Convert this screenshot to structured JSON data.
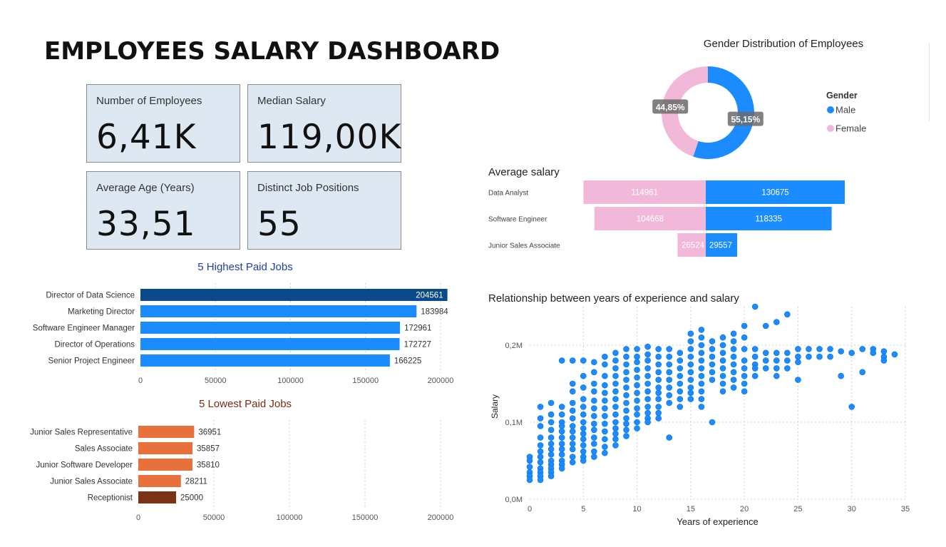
{
  "dashboard": {
    "title": "EMPLOYEES SALARY DASHBOARD"
  },
  "kpis": [
    {
      "label": "Number of Employees",
      "value": "6,41K"
    },
    {
      "label": "Median Salary",
      "value": "119,00K"
    },
    {
      "label": "Average Age (Years)",
      "value": "33,51"
    },
    {
      "label": "Distinct Job Positions",
      "value": "55"
    }
  ],
  "chart_data": [
    {
      "id": "highest_paid",
      "type": "bar",
      "orientation": "horizontal",
      "title": "5 Highest Paid Jobs",
      "categories": [
        "Director of Data Science",
        "Marketing Director",
        "Software Engineer Manager",
        "Director of Operations",
        "Senior Project Engineer"
      ],
      "values": [
        204561,
        183984,
        172961,
        172727,
        166225
      ],
      "xlim": [
        0,
        200000
      ],
      "xticks": [
        "0",
        "50000",
        "100000",
        "150000",
        "200000"
      ],
      "colors": [
        "#0a4a8a",
        "#1a8cff",
        "#1a8cff",
        "#1a8cff",
        "#1a8cff"
      ],
      "grid": true
    },
    {
      "id": "lowest_paid",
      "type": "bar",
      "orientation": "horizontal",
      "title": "5 Lowest Paid Jobs",
      "categories": [
        "Junior Sales Representative",
        "Sales Associate",
        "Junior Software Developer",
        "Junior Sales Associate",
        "Receptionist"
      ],
      "values": [
        36951,
        35857,
        35810,
        28211,
        25000
      ],
      "xlim": [
        0,
        200000
      ],
      "xticks": [
        "0",
        "50000",
        "100000",
        "150000",
        "200000"
      ],
      "colors": [
        "#e8703a",
        "#e8703a",
        "#e8703a",
        "#e8703a",
        "#7a3414"
      ],
      "grid": true
    },
    {
      "id": "gender_distribution",
      "type": "pie",
      "donut": true,
      "title": "Gender Distribution of Employees",
      "legend_title": "Gender",
      "legend_position": "right",
      "slices": [
        {
          "name": "Male",
          "value": 55.15,
          "label": "55,15%",
          "color": "#1a8cff"
        },
        {
          "name": "Female",
          "value": 44.85,
          "label": "44,85%",
          "color": "#f2b8da"
        }
      ]
    },
    {
      "id": "average_salary",
      "type": "bar",
      "orientation": "diverging",
      "title": "Average salary",
      "categories": [
        "Data Analyst",
        "Software Engineer",
        "Junior Sales Associate"
      ],
      "series": [
        {
          "name": "Female",
          "values": [
            114961,
            104668,
            26524
          ],
          "color": "#f2b8da"
        },
        {
          "name": "Male",
          "values": [
            130675,
            118335,
            29557
          ],
          "color": "#1a8cff"
        }
      ]
    },
    {
      "id": "experience_salary",
      "type": "scatter",
      "title": "Relationship between years of experience and salary",
      "xlabel": "Years of experience",
      "ylabel": "Salary",
      "xlim": [
        0,
        35
      ],
      "ylim": [
        0,
        250000
      ],
      "xticks": [
        "0",
        "5",
        "10",
        "15",
        "20",
        "25",
        "30",
        "35"
      ],
      "yticks": [
        {
          "value": 0,
          "label": "0,0M"
        },
        {
          "value": 100000,
          "label": "0,1M"
        },
        {
          "value": 200000,
          "label": "0,2M"
        }
      ],
      "color": "#1a8cff",
      "points": [
        [
          0,
          55000
        ],
        [
          0,
          50000
        ],
        [
          0,
          42000
        ],
        [
          0,
          35000
        ],
        [
          0,
          30000
        ],
        [
          0,
          25000
        ],
        [
          1,
          120000
        ],
        [
          1,
          105000
        ],
        [
          1,
          95000
        ],
        [
          1,
          80000
        ],
        [
          1,
          70000
        ],
        [
          1,
          62000
        ],
        [
          1,
          55000
        ],
        [
          1,
          48000
        ],
        [
          1,
          40000
        ],
        [
          1,
          35000
        ],
        [
          1,
          30000
        ],
        [
          1,
          25000
        ],
        [
          2,
          125000
        ],
        [
          2,
          110000
        ],
        [
          2,
          100000
        ],
        [
          2,
          90000
        ],
        [
          2,
          80000
        ],
        [
          2,
          72000
        ],
        [
          2,
          65000
        ],
        [
          2,
          58000
        ],
        [
          2,
          50000
        ],
        [
          2,
          45000
        ],
        [
          2,
          40000
        ],
        [
          2,
          35000
        ],
        [
          2,
          30000
        ],
        [
          3,
          180000
        ],
        [
          3,
          120000
        ],
        [
          3,
          110000
        ],
        [
          3,
          100000
        ],
        [
          3,
          95000
        ],
        [
          3,
          88000
        ],
        [
          3,
          80000
        ],
        [
          3,
          72000
        ],
        [
          3,
          65000
        ],
        [
          3,
          58000
        ],
        [
          3,
          50000
        ],
        [
          3,
          45000
        ],
        [
          3,
          40000
        ],
        [
          4,
          180000
        ],
        [
          4,
          150000
        ],
        [
          4,
          140000
        ],
        [
          4,
          125000
        ],
        [
          4,
          115000
        ],
        [
          4,
          105000
        ],
        [
          4,
          95000
        ],
        [
          4,
          88000
        ],
        [
          4,
          80000
        ],
        [
          4,
          72000
        ],
        [
          4,
          65000
        ],
        [
          4,
          55000
        ],
        [
          4,
          48000
        ],
        [
          5,
          180000
        ],
        [
          5,
          160000
        ],
        [
          5,
          145000
        ],
        [
          5,
          130000
        ],
        [
          5,
          120000
        ],
        [
          5,
          110000
        ],
        [
          5,
          100000
        ],
        [
          5,
          92000
        ],
        [
          5,
          85000
        ],
        [
          5,
          78000
        ],
        [
          5,
          70000
        ],
        [
          5,
          62000
        ],
        [
          5,
          55000
        ],
        [
          5,
          50000
        ],
        [
          6,
          178000
        ],
        [
          6,
          165000
        ],
        [
          6,
          150000
        ],
        [
          6,
          140000
        ],
        [
          6,
          128000
        ],
        [
          6,
          118000
        ],
        [
          6,
          108000
        ],
        [
          6,
          98000
        ],
        [
          6,
          90000
        ],
        [
          6,
          80000
        ],
        [
          6,
          72000
        ],
        [
          6,
          62000
        ],
        [
          6,
          55000
        ],
        [
          7,
          185000
        ],
        [
          7,
          175000
        ],
        [
          7,
          160000
        ],
        [
          7,
          148000
        ],
        [
          7,
          138000
        ],
        [
          7,
          128000
        ],
        [
          7,
          118000
        ],
        [
          7,
          108000
        ],
        [
          7,
          98000
        ],
        [
          7,
          88000
        ],
        [
          7,
          78000
        ],
        [
          7,
          68000
        ],
        [
          7,
          60000
        ],
        [
          8,
          190000
        ],
        [
          8,
          180000
        ],
        [
          8,
          170000
        ],
        [
          8,
          160000
        ],
        [
          8,
          150000
        ],
        [
          8,
          140000
        ],
        [
          8,
          130000
        ],
        [
          8,
          120000
        ],
        [
          8,
          110000
        ],
        [
          8,
          100000
        ],
        [
          8,
          92000
        ],
        [
          8,
          85000
        ],
        [
          8,
          78000
        ],
        [
          8,
          70000
        ],
        [
          9,
          195000
        ],
        [
          9,
          185000
        ],
        [
          9,
          175000
        ],
        [
          9,
          165000
        ],
        [
          9,
          155000
        ],
        [
          9,
          145000
        ],
        [
          9,
          135000
        ],
        [
          9,
          125000
        ],
        [
          9,
          115000
        ],
        [
          9,
          105000
        ],
        [
          9,
          98000
        ],
        [
          9,
          90000
        ],
        [
          9,
          82000
        ],
        [
          10,
          195000
        ],
        [
          10,
          185000
        ],
        [
          10,
          178000
        ],
        [
          10,
          168000
        ],
        [
          10,
          158000
        ],
        [
          10,
          148000
        ],
        [
          10,
          138000
        ],
        [
          10,
          128000
        ],
        [
          10,
          118000
        ],
        [
          10,
          110000
        ],
        [
          10,
          100000
        ],
        [
          10,
          92000
        ],
        [
          11,
          198000
        ],
        [
          11,
          188000
        ],
        [
          11,
          180000
        ],
        [
          11,
          170000
        ],
        [
          11,
          160000
        ],
        [
          11,
          150000
        ],
        [
          11,
          140000
        ],
        [
          11,
          130000
        ],
        [
          11,
          120000
        ],
        [
          11,
          112000
        ],
        [
          11,
          105000
        ],
        [
          11,
          100000
        ],
        [
          12,
          195000
        ],
        [
          12,
          185000
        ],
        [
          12,
          175000
        ],
        [
          12,
          165000
        ],
        [
          12,
          155000
        ],
        [
          12,
          145000
        ],
        [
          12,
          138000
        ],
        [
          12,
          130000
        ],
        [
          12,
          120000
        ],
        [
          12,
          112000
        ],
        [
          12,
          105000
        ],
        [
          13,
          195000
        ],
        [
          13,
          185000
        ],
        [
          13,
          175000
        ],
        [
          13,
          165000
        ],
        [
          13,
          155000
        ],
        [
          13,
          145000
        ],
        [
          13,
          135000
        ],
        [
          13,
          125000
        ],
        [
          13,
          80000
        ],
        [
          14,
          190000
        ],
        [
          14,
          180000
        ],
        [
          14,
          170000
        ],
        [
          14,
          160000
        ],
        [
          14,
          150000
        ],
        [
          14,
          140000
        ],
        [
          14,
          130000
        ],
        [
          14,
          120000
        ],
        [
          15,
          215000
        ],
        [
          15,
          205000
        ],
        [
          15,
          195000
        ],
        [
          15,
          185000
        ],
        [
          15,
          175000
        ],
        [
          15,
          165000
        ],
        [
          15,
          155000
        ],
        [
          15,
          145000
        ],
        [
          15,
          138000
        ],
        [
          15,
          130000
        ],
        [
          16,
          220000
        ],
        [
          16,
          210000
        ],
        [
          16,
          200000
        ],
        [
          16,
          190000
        ],
        [
          16,
          180000
        ],
        [
          16,
          170000
        ],
        [
          16,
          160000
        ],
        [
          16,
          150000
        ],
        [
          16,
          140000
        ],
        [
          16,
          130000
        ],
        [
          16,
          120000
        ],
        [
          17,
          205000
        ],
        [
          17,
          195000
        ],
        [
          17,
          185000
        ],
        [
          17,
          175000
        ],
        [
          17,
          165000
        ],
        [
          17,
          155000
        ],
        [
          17,
          100000
        ],
        [
          18,
          210000
        ],
        [
          18,
          200000
        ],
        [
          18,
          190000
        ],
        [
          18,
          180000
        ],
        [
          18,
          170000
        ],
        [
          18,
          160000
        ],
        [
          18,
          150000
        ],
        [
          18,
          140000
        ],
        [
          19,
          215000
        ],
        [
          19,
          205000
        ],
        [
          19,
          195000
        ],
        [
          19,
          185000
        ],
        [
          19,
          175000
        ],
        [
          19,
          165000
        ],
        [
          19,
          155000
        ],
        [
          19,
          145000
        ],
        [
          20,
          225000
        ],
        [
          20,
          210000
        ],
        [
          20,
          195000
        ],
        [
          20,
          180000
        ],
        [
          20,
          170000
        ],
        [
          20,
          160000
        ],
        [
          20,
          150000
        ],
        [
          20,
          140000
        ],
        [
          21,
          250000
        ],
        [
          21,
          195000
        ],
        [
          21,
          185000
        ],
        [
          21,
          175000
        ],
        [
          21,
          170000
        ],
        [
          21,
          160000
        ],
        [
          22,
          225000
        ],
        [
          22,
          190000
        ],
        [
          22,
          180000
        ],
        [
          22,
          170000
        ],
        [
          23,
          230000
        ],
        [
          23,
          190000
        ],
        [
          23,
          180000
        ],
        [
          23,
          170000
        ],
        [
          23,
          160000
        ],
        [
          24,
          240000
        ],
        [
          24,
          190000
        ],
        [
          24,
          180000
        ],
        [
          24,
          170000
        ],
        [
          25,
          195000
        ],
        [
          25,
          185000
        ],
        [
          25,
          178000
        ],
        [
          25,
          155000
        ],
        [
          26,
          195000
        ],
        [
          26,
          185000
        ],
        [
          27,
          195000
        ],
        [
          27,
          185000
        ],
        [
          28,
          195000
        ],
        [
          28,
          185000
        ],
        [
          29,
          192000
        ],
        [
          29,
          160000
        ],
        [
          30,
          190000
        ],
        [
          30,
          120000
        ],
        [
          31,
          195000
        ],
        [
          31,
          165000
        ],
        [
          32,
          195000
        ],
        [
          32,
          190000
        ],
        [
          33,
          192000
        ],
        [
          33,
          185000
        ],
        [
          33,
          180000
        ],
        [
          34,
          188000
        ]
      ]
    }
  ]
}
